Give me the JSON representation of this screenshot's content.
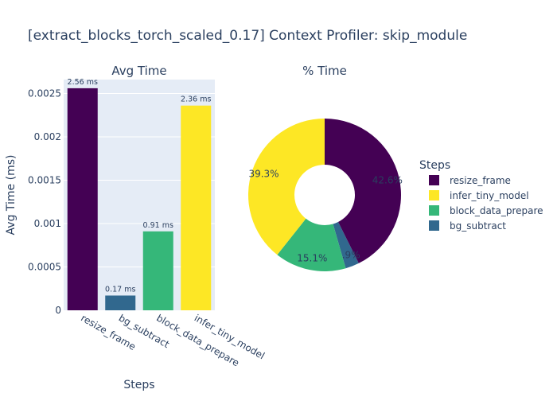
{
  "title": "[extract_blocks_torch_scaled_0.17] Context Profiler: skip_module",
  "colors": {
    "resize_frame": "#440154",
    "bg_subtract": "#31688e",
    "block_data_prepare": "#35b779",
    "infer_tiny_model": "#fde725",
    "plot_bg": "#e5ecf6",
    "text": "#2a3f5f"
  },
  "chart_data": [
    {
      "type": "bar",
      "title": "Avg Time",
      "xlabel": "Steps",
      "ylabel": "Avg Time (ms)",
      "categories": [
        "resize_frame",
        "bg_subtract",
        "block_data_prepare",
        "infer_tiny_model"
      ],
      "values": [
        0.00256,
        0.00017,
        0.00091,
        0.00236
      ],
      "data_labels": [
        "2.56 ms",
        "0.17 ms",
        "0.91 ms",
        "2.36 ms"
      ],
      "ylim": [
        0,
        0.00266
      ],
      "yticks": [
        0,
        0.0005,
        0.001,
        0.0015,
        0.002,
        0.0025
      ],
      "ytick_labels": [
        "0",
        "0.0005",
        "0.001",
        "0.0015",
        "0.002",
        "0.0025"
      ],
      "grid": true
    },
    {
      "type": "pie",
      "title": "% Time",
      "hole": true,
      "slices": [
        {
          "label": "resize_frame",
          "value": 42.6,
          "text": "42.6%"
        },
        {
          "label": "bg_subtract",
          "value": 2.9,
          "text": "2.9%"
        },
        {
          "label": "block_data_prepare",
          "value": 15.1,
          "text": "15.1%"
        },
        {
          "label": "infer_tiny_model",
          "value": 39.3,
          "text": "39.3%"
        }
      ]
    }
  ],
  "legend": {
    "title": "Steps",
    "items": [
      "resize_frame",
      "infer_tiny_model",
      "block_data_prepare",
      "bg_subtract"
    ],
    "placement": "right"
  }
}
